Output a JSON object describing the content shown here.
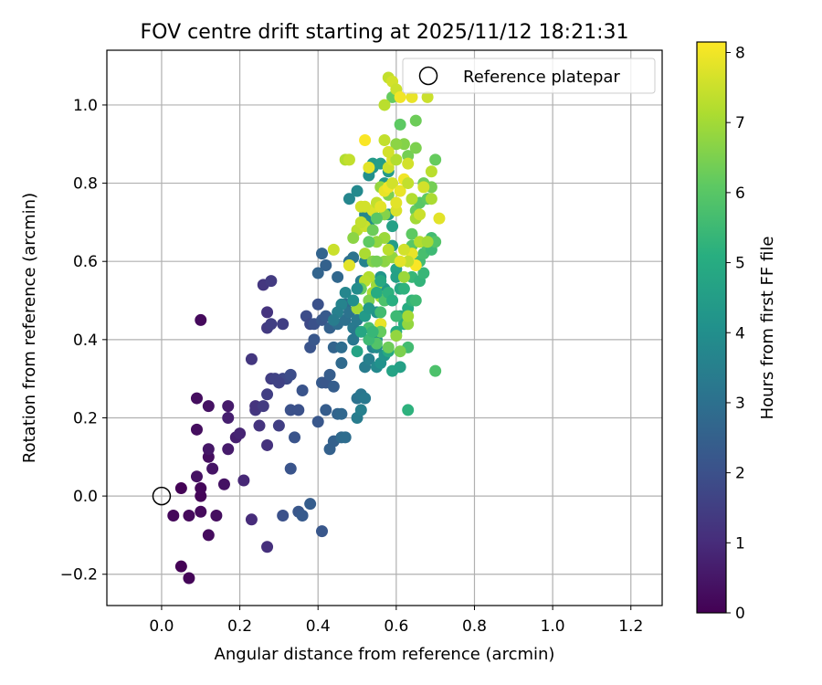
{
  "chart_data": {
    "type": "scatter",
    "title": "FOV centre drift starting at 2025/11/12 18:21:31",
    "xlabel": "Angular distance from reference (arcmin)",
    "ylabel": "Rotation from reference (arcmin)",
    "xlim": [
      -0.14,
      1.28
    ],
    "ylim": [
      -0.28,
      1.14
    ],
    "xticks": [
      0.0,
      0.2,
      0.4,
      0.6,
      0.8,
      1.0,
      1.2
    ],
    "xtick_labels": [
      "0.0",
      "0.2",
      "0.4",
      "0.6",
      "0.8",
      "1.0",
      "1.2"
    ],
    "yticks": [
      -0.2,
      0.0,
      0.2,
      0.4,
      0.6,
      0.8,
      1.0
    ],
    "ytick_labels": [
      "−0.2",
      "0.0",
      "0.2",
      "0.4",
      "0.6",
      "0.8",
      "1.0"
    ],
    "grid": true,
    "legend": {
      "position": "top-right",
      "entries": [
        {
          "label": "Reference platepar",
          "marker": "open-circle"
        }
      ]
    },
    "reference_point": {
      "x": 0.0,
      "y": 0.0,
      "label": "Reference platepar"
    },
    "colorbar": {
      "label": "Hours from first FF file",
      "range": [
        0,
        8.15
      ],
      "ticks": [
        0,
        1,
        2,
        3,
        4,
        5,
        6,
        7,
        8
      ],
      "tick_labels": [
        "0",
        "1",
        "2",
        "3",
        "4",
        "5",
        "6",
        "7",
        "8"
      ],
      "colormap": "viridis"
    },
    "points": [
      [
        0.05,
        -0.18,
        0.05
      ],
      [
        0.07,
        -0.21,
        0.1
      ],
      [
        0.03,
        -0.05,
        0.15
      ],
      [
        0.07,
        -0.05,
        0.2
      ],
      [
        0.1,
        0.0,
        0.1
      ],
      [
        0.1,
        0.02,
        0.15
      ],
      [
        0.1,
        -0.04,
        0.2
      ],
      [
        0.12,
        -0.1,
        0.25
      ],
      [
        0.14,
        -0.05,
        0.3
      ],
      [
        0.05,
        0.02,
        0.05
      ],
      [
        0.09,
        0.05,
        0.4
      ],
      [
        0.12,
        0.1,
        0.3
      ],
      [
        0.13,
        0.07,
        0.45
      ],
      [
        0.12,
        0.12,
        0.5
      ],
      [
        0.16,
        0.03,
        0.4
      ],
      [
        0.17,
        0.12,
        0.6
      ],
      [
        0.09,
        0.17,
        0.3
      ],
      [
        0.19,
        0.15,
        0.7
      ],
      [
        0.2,
        0.16,
        0.8
      ],
      [
        0.21,
        0.04,
        0.9
      ],
      [
        0.17,
        0.2,
        0.7
      ],
      [
        0.17,
        0.23,
        0.6
      ],
      [
        0.09,
        0.25,
        0.3
      ],
      [
        0.12,
        0.23,
        0.4
      ],
      [
        0.1,
        0.45,
        0.2
      ],
      [
        0.23,
        -0.06,
        1.0
      ],
      [
        0.27,
        -0.13,
        1.1
      ],
      [
        0.25,
        0.18,
        1.2
      ],
      [
        0.27,
        0.13,
        1.15
      ],
      [
        0.24,
        0.22,
        1.3
      ],
      [
        0.24,
        0.23,
        1.2
      ],
      [
        0.26,
        0.23,
        1.4
      ],
      [
        0.27,
        0.26,
        1.5
      ],
      [
        0.28,
        0.3,
        1.45
      ],
      [
        0.29,
        0.3,
        1.6
      ],
      [
        0.3,
        0.18,
        1.5
      ],
      [
        0.23,
        0.35,
        1.3
      ],
      [
        0.27,
        0.43,
        1.4
      ],
      [
        0.28,
        0.44,
        1.5
      ],
      [
        0.27,
        0.47,
        1.2
      ],
      [
        0.26,
        0.54,
        1.3
      ],
      [
        0.28,
        0.55,
        1.4
      ],
      [
        0.31,
        0.44,
        1.5
      ],
      [
        0.31,
        0.3,
        1.7
      ],
      [
        0.32,
        0.3,
        1.8
      ],
      [
        0.33,
        0.31,
        1.9
      ],
      [
        0.3,
        0.29,
        1.6
      ],
      [
        0.31,
        -0.05,
        2.0
      ],
      [
        0.33,
        0.07,
        2.1
      ],
      [
        0.33,
        0.22,
        2.0
      ],
      [
        0.35,
        -0.04,
        2.2
      ],
      [
        0.36,
        -0.05,
        2.3
      ],
      [
        0.38,
        -0.02,
        2.4
      ],
      [
        0.41,
        -0.09,
        2.2
      ],
      [
        0.34,
        0.15,
        2.1
      ],
      [
        0.35,
        0.22,
        2.0
      ],
      [
        0.36,
        0.27,
        2.1
      ],
      [
        0.37,
        0.46,
        1.9
      ],
      [
        0.38,
        0.44,
        1.8
      ],
      [
        0.39,
        0.44,
        2.0
      ],
      [
        0.38,
        0.38,
        2.1
      ],
      [
        0.39,
        0.4,
        2.2
      ],
      [
        0.4,
        0.49,
        2.0
      ],
      [
        0.4,
        0.19,
        2.2
      ],
      [
        0.41,
        0.29,
        2.3
      ],
      [
        0.42,
        0.29,
        2.2
      ],
      [
        0.43,
        0.31,
        2.4
      ],
      [
        0.42,
        0.22,
        2.4
      ],
      [
        0.43,
        0.12,
        2.5
      ],
      [
        0.44,
        0.14,
        2.5
      ],
      [
        0.44,
        0.28,
        2.4
      ],
      [
        0.41,
        0.45,
        2.2
      ],
      [
        0.42,
        0.46,
        2.3
      ],
      [
        0.41,
        0.62,
        2.6
      ],
      [
        0.42,
        0.59,
        2.5
      ],
      [
        0.4,
        0.57,
        2.6
      ],
      [
        0.43,
        0.43,
        2.5
      ],
      [
        0.44,
        0.38,
        2.6
      ],
      [
        0.45,
        0.21,
        2.6
      ],
      [
        0.46,
        0.21,
        2.7
      ],
      [
        0.46,
        0.15,
        2.8
      ],
      [
        0.47,
        0.15,
        2.9
      ],
      [
        0.46,
        0.34,
        2.8
      ],
      [
        0.46,
        0.38,
        2.9
      ],
      [
        0.45,
        0.56,
        2.7
      ],
      [
        0.45,
        0.44,
        2.9
      ],
      [
        0.47,
        0.49,
        2.8
      ],
      [
        0.47,
        0.45,
        3.0
      ],
      [
        0.48,
        0.47,
        3.1
      ],
      [
        0.48,
        0.6,
        3.0
      ],
      [
        0.49,
        0.61,
        3.1
      ],
      [
        0.49,
        0.4,
        3.2
      ],
      [
        0.49,
        0.43,
        3.3
      ],
      [
        0.5,
        0.42,
        3.2
      ],
      [
        0.5,
        0.25,
        3.1
      ],
      [
        0.51,
        0.26,
        3.2
      ],
      [
        0.52,
        0.25,
        3.3
      ],
      [
        0.5,
        0.2,
        3.4
      ],
      [
        0.51,
        0.22,
        3.5
      ],
      [
        0.52,
        0.33,
        3.4
      ],
      [
        0.5,
        0.45,
        3.3
      ],
      [
        0.51,
        0.55,
        3.4
      ],
      [
        0.52,
        0.6,
        3.6
      ],
      [
        0.48,
        0.76,
        3.7
      ],
      [
        0.5,
        0.78,
        3.8
      ],
      [
        0.52,
        0.72,
        3.7
      ],
      [
        0.53,
        0.7,
        3.9
      ],
      [
        0.53,
        0.35,
        3.5
      ],
      [
        0.54,
        0.38,
        3.6
      ],
      [
        0.55,
        0.33,
        3.8
      ],
      [
        0.55,
        0.38,
        3.9
      ],
      [
        0.55,
        0.4,
        4.0
      ],
      [
        0.56,
        0.34,
        4.1
      ],
      [
        0.57,
        0.36,
        4.2
      ],
      [
        0.56,
        0.44,
        4.0
      ],
      [
        0.55,
        0.47,
        4.1
      ],
      [
        0.56,
        0.56,
        4.2
      ],
      [
        0.57,
        0.53,
        4.3
      ],
      [
        0.53,
        0.82,
        4.0
      ],
      [
        0.54,
        0.84,
        4.2
      ],
      [
        0.54,
        0.85,
        4.4
      ],
      [
        0.56,
        0.85,
        4.5
      ],
      [
        0.57,
        0.8,
        4.3
      ],
      [
        0.58,
        0.83,
        4.4
      ],
      [
        0.58,
        0.72,
        4.5
      ],
      [
        0.59,
        0.69,
        4.6
      ],
      [
        0.59,
        0.64,
        4.5
      ],
      [
        0.6,
        0.58,
        4.7
      ],
      [
        0.6,
        0.56,
        4.6
      ],
      [
        0.61,
        0.53,
        4.8
      ],
      [
        0.61,
        0.46,
        4.9
      ],
      [
        0.59,
        0.32,
        4.7
      ],
      [
        0.61,
        0.33,
        4.6
      ],
      [
        0.58,
        0.37,
        4.9
      ],
      [
        0.6,
        0.42,
        5.0
      ],
      [
        0.62,
        0.44,
        5.1
      ],
      [
        0.63,
        0.22,
        5.2
      ],
      [
        0.63,
        0.48,
        5.0
      ],
      [
        0.62,
        0.53,
        5.2
      ],
      [
        0.64,
        0.5,
        5.3
      ],
      [
        0.64,
        0.56,
        5.4
      ],
      [
        0.65,
        0.5,
        5.5
      ],
      [
        0.66,
        0.55,
        5.3
      ],
      [
        0.66,
        0.6,
        5.6
      ],
      [
        0.67,
        0.57,
        5.4
      ],
      [
        0.67,
        0.62,
        5.7
      ],
      [
        0.68,
        0.64,
        5.8
      ],
      [
        0.69,
        0.66,
        5.6
      ],
      [
        0.69,
        0.63,
        5.5
      ],
      [
        0.7,
        0.65,
        5.9
      ],
      [
        0.63,
        0.38,
        5.6
      ],
      [
        0.7,
        0.32,
        5.8
      ],
      [
        0.64,
        0.64,
        6.0
      ],
      [
        0.64,
        0.67,
        6.1
      ],
      [
        0.65,
        0.73,
        6.2
      ],
      [
        0.66,
        0.75,
        6.0
      ],
      [
        0.67,
        0.8,
        6.3
      ],
      [
        0.68,
        0.76,
        6.1
      ],
      [
        0.69,
        0.79,
        6.4
      ],
      [
        0.7,
        0.86,
        6.2
      ],
      [
        0.63,
        0.87,
        6.4
      ],
      [
        0.62,
        0.9,
        6.6
      ],
      [
        0.65,
        0.89,
        6.5
      ],
      [
        0.65,
        0.96,
        6.3
      ],
      [
        0.61,
        0.95,
        6.1
      ],
      [
        0.6,
        0.9,
        6.7
      ],
      [
        0.59,
        1.02,
        6.2
      ],
      [
        0.58,
        0.77,
        6.5
      ],
      [
        0.57,
        0.72,
        6.6
      ],
      [
        0.56,
        0.79,
        6.8
      ],
      [
        0.57,
        0.6,
        6.7
      ],
      [
        0.59,
        0.61,
        6.8
      ],
      [
        0.55,
        0.54,
        6.9
      ],
      [
        0.56,
        0.51,
        7.0
      ],
      [
        0.54,
        0.52,
        7.1
      ],
      [
        0.53,
        0.56,
        7.2
      ],
      [
        0.52,
        0.55,
        7.3
      ],
      [
        0.5,
        0.48,
        7.0
      ],
      [
        0.52,
        0.62,
        7.1
      ],
      [
        0.5,
        0.68,
        7.3
      ],
      [
        0.52,
        0.69,
        7.5
      ],
      [
        0.51,
        0.74,
        7.6
      ],
      [
        0.54,
        0.73,
        7.7
      ],
      [
        0.55,
        0.75,
        7.4
      ],
      [
        0.56,
        0.74,
        7.8
      ],
      [
        0.57,
        0.78,
        7.9
      ],
      [
        0.58,
        0.79,
        8.0
      ],
      [
        0.59,
        0.8,
        7.6
      ],
      [
        0.6,
        0.73,
        7.7
      ],
      [
        0.6,
        0.75,
        7.8
      ],
      [
        0.61,
        0.78,
        7.9
      ],
      [
        0.62,
        0.81,
        8.0
      ],
      [
        0.58,
        0.84,
        7.5
      ],
      [
        0.59,
        0.86,
        7.7
      ],
      [
        0.57,
        0.91,
        7.4
      ],
      [
        0.6,
        0.86,
        7.2
      ],
      [
        0.58,
        0.88,
        7.6
      ],
      [
        0.47,
        0.86,
        7.2
      ],
      [
        0.48,
        0.86,
        7.4
      ],
      [
        0.52,
        0.91,
        8.1
      ],
      [
        0.53,
        0.84,
        7.8
      ],
      [
        0.57,
        1.0,
        7.3
      ],
      [
        0.58,
        1.07,
        7.4
      ],
      [
        0.59,
        1.06,
        7.6
      ],
      [
        0.6,
        1.04,
        7.5
      ],
      [
        0.61,
        1.02,
        8.0
      ],
      [
        0.64,
        1.02,
        7.9
      ],
      [
        0.68,
        1.02,
        7.5
      ],
      [
        0.63,
        0.85,
        7.6
      ],
      [
        0.63,
        0.8,
        7.4
      ],
      [
        0.64,
        0.76,
        7.2
      ],
      [
        0.65,
        0.71,
        7.0
      ],
      [
        0.66,
        0.72,
        7.5
      ],
      [
        0.67,
        0.79,
        7.6
      ],
      [
        0.69,
        0.83,
        7.3
      ],
      [
        0.69,
        0.76,
        7.1
      ],
      [
        0.71,
        0.71,
        7.8
      ],
      [
        0.66,
        0.65,
        7.2
      ],
      [
        0.68,
        0.65,
        7.0
      ],
      [
        0.64,
        0.62,
        7.9
      ],
      [
        0.65,
        0.59,
        8.1
      ],
      [
        0.62,
        0.63,
        7.6
      ],
      [
        0.63,
        0.6,
        7.4
      ],
      [
        0.61,
        0.6,
        7.8
      ],
      [
        0.62,
        0.56,
        6.9
      ],
      [
        0.63,
        0.44,
        6.8
      ],
      [
        0.63,
        0.46,
        7.0
      ],
      [
        0.56,
        0.44,
        7.9
      ],
      [
        0.6,
        0.41,
        6.8
      ],
      [
        0.61,
        0.37,
        6.5
      ],
      [
        0.58,
        0.38,
        6.3
      ],
      [
        0.56,
        0.42,
        6.2
      ],
      [
        0.58,
        0.63,
        7.3
      ],
      [
        0.57,
        0.66,
        6.9
      ],
      [
        0.55,
        0.65,
        6.8
      ],
      [
        0.54,
        0.6,
        6.6
      ],
      [
        0.55,
        0.6,
        6.4
      ],
      [
        0.53,
        0.5,
        6.5
      ],
      [
        0.51,
        0.53,
        6.2
      ],
      [
        0.53,
        0.65,
        6.1
      ],
      [
        0.54,
        0.68,
        6.3
      ],
      [
        0.55,
        0.71,
        6.0
      ],
      [
        0.49,
        0.66,
        6.7
      ],
      [
        0.51,
        0.7,
        7.4
      ],
      [
        0.52,
        0.74,
        7.6
      ],
      [
        0.44,
        0.63,
        7.5
      ],
      [
        0.48,
        0.59,
        7.8
      ],
      [
        0.55,
        0.39,
        5.9
      ],
      [
        0.53,
        0.43,
        5.7
      ],
      [
        0.53,
        0.4,
        5.5
      ],
      [
        0.54,
        0.42,
        5.4
      ],
      [
        0.56,
        0.47,
        5.6
      ],
      [
        0.57,
        0.5,
        5.8
      ],
      [
        0.58,
        0.52,
        5.2
      ],
      [
        0.59,
        0.5,
        5.1
      ],
      [
        0.6,
        0.46,
        5.5
      ],
      [
        0.55,
        0.52,
        5.0
      ],
      [
        0.56,
        0.55,
        4.9
      ],
      [
        0.5,
        0.37,
        4.7
      ],
      [
        0.51,
        0.42,
        4.8
      ],
      [
        0.52,
        0.46,
        4.4
      ],
      [
        0.53,
        0.48,
        4.3
      ],
      [
        0.49,
        0.5,
        4.0
      ],
      [
        0.5,
        0.53,
        3.9
      ],
      [
        0.47,
        0.52,
        3.7
      ],
      [
        0.46,
        0.49,
        3.6
      ],
      [
        0.45,
        0.47,
        3.5
      ],
      [
        0.44,
        0.45,
        3.4
      ]
    ]
  }
}
